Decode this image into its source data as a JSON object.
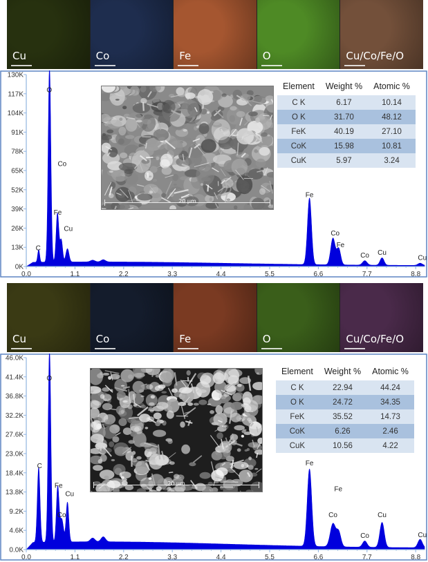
{
  "panels": [
    {
      "maps": [
        {
          "label": "Cu",
          "color": "#27310f"
        },
        {
          "label": "Co",
          "color": "#1e2d4e"
        },
        {
          "label": "Fe",
          "color": "#a55630"
        },
        {
          "label": "O",
          "color": "#4e8a25"
        },
        {
          "label": "Cu/Co/Fe/O",
          "color": "#73503a"
        }
      ],
      "sem_scale": "20 µm",
      "table": {
        "headers": [
          "Element",
          "Weight %",
          "Atomic %"
        ],
        "rows": [
          [
            "C K",
            "6.17",
            "10.14"
          ],
          [
            "O K",
            "31.70",
            "48.12"
          ],
          [
            "FeK",
            "40.19",
            "27.10"
          ],
          [
            "CoK",
            "15.98",
            "10.81"
          ],
          [
            "CuK",
            "5.97",
            "3.24"
          ]
        ]
      }
    },
    {
      "maps": [
        {
          "label": "Cu",
          "color": "#3a3a14"
        },
        {
          "label": "Co",
          "color": "#141c2c"
        },
        {
          "label": "Fe",
          "color": "#7a3a22"
        },
        {
          "label": "O",
          "color": "#3a5e1a"
        },
        {
          "label": "Cu/Co/Fe/O",
          "color": "#4a2a4a"
        }
      ],
      "sem_scale": "20 µm",
      "table": {
        "headers": [
          "Element",
          "Weight %",
          "Atomic %"
        ],
        "rows": [
          [
            "C K",
            "22.94",
            "44.24"
          ],
          [
            "O K",
            "24.72",
            "34.35"
          ],
          [
            "FeK",
            "35.52",
            "14.73"
          ],
          [
            "CoK",
            "6.26",
            "2.46"
          ],
          [
            "CuK",
            "10.56",
            "4.22"
          ]
        ]
      }
    }
  ],
  "colors": {
    "spectrum": "#0000dd",
    "axis": "#8fb3e0",
    "frame": "#5b83c2"
  },
  "chart_data": [
    {
      "type": "area",
      "title": "",
      "xlabel": "",
      "ylabel": "",
      "xlim": [
        0,
        9.0
      ],
      "ylim": [
        0,
        130000
      ],
      "x_ticks": [
        0.0,
        1.1,
        2.2,
        3.3,
        4.4,
        5.5,
        6.6,
        7.7,
        8.8
      ],
      "x_tick_labels": [
        "0.0",
        "1.1",
        "2.2",
        "3.3",
        "4.4",
        "5.5",
        "6.6",
        "7.7",
        "8.8"
      ],
      "y_ticks": [
        0,
        13000,
        26000,
        39000,
        52000,
        65000,
        78000,
        91000,
        104000,
        117000,
        130000
      ],
      "y_tick_labels": [
        "0K",
        "13K",
        "26K",
        "39K",
        "52K",
        "65K",
        "78K",
        "91K",
        "104K",
        "117K",
        "130K"
      ],
      "background": 2500,
      "peaks": [
        {
          "x": 0.28,
          "y": 8500,
          "w": 0.022
        },
        {
          "x": 0.525,
          "y": 132000,
          "w": 0.03
        },
        {
          "x": 0.705,
          "y": 33000,
          "w": 0.03
        },
        {
          "x": 0.79,
          "y": 15000,
          "w": 0.03
        },
        {
          "x": 0.93,
          "y": 9000,
          "w": 0.035
        },
        {
          "x": 1.5,
          "y": 1200,
          "w": 0.05
        },
        {
          "x": 1.74,
          "y": 1500,
          "w": 0.05
        },
        {
          "x": 6.4,
          "y": 45000,
          "w": 0.045
        },
        {
          "x": 6.93,
          "y": 18000,
          "w": 0.05
        },
        {
          "x": 7.06,
          "y": 11000,
          "w": 0.045
        },
        {
          "x": 7.65,
          "y": 3000,
          "w": 0.05
        },
        {
          "x": 8.04,
          "y": 5000,
          "w": 0.045
        },
        {
          "x": 8.9,
          "y": 1500,
          "w": 0.05
        }
      ],
      "annotations": [
        {
          "text": "O",
          "x": 0.52,
          "y": 118000
        },
        {
          "text": "Co",
          "x": 0.81,
          "y": 68000
        },
        {
          "text": "Fe",
          "x": 0.71,
          "y": 35000
        },
        {
          "text": "Cu",
          "x": 0.95,
          "y": 24000
        },
        {
          "text": "C",
          "x": 0.27,
          "y": 11000
        },
        {
          "text": "Fe",
          "x": 6.4,
          "y": 47000
        },
        {
          "text": "Co",
          "x": 6.98,
          "y": 21000
        },
        {
          "text": "Fe",
          "x": 7.1,
          "y": 13000
        },
        {
          "text": "Co",
          "x": 7.65,
          "y": 6000
        },
        {
          "text": "Cu",
          "x": 8.04,
          "y": 8000
        },
        {
          "text": "Cu",
          "x": 8.95,
          "y": 4500
        }
      ]
    },
    {
      "type": "area",
      "title": "",
      "xlabel": "",
      "ylabel": "",
      "xlim": [
        0,
        9.0
      ],
      "ylim": [
        0,
        46000
      ],
      "x_ticks": [
        0.0,
        1.1,
        2.2,
        3.3,
        4.4,
        5.5,
        6.6,
        7.7,
        8.8
      ],
      "x_tick_labels": [
        "0.0",
        "1.1",
        "2.2",
        "3.3",
        "4.4",
        "5.5",
        "6.6",
        "7.7",
        "8.8"
      ],
      "y_ticks": [
        0,
        4600,
        9200,
        13800,
        18400,
        23000,
        27600,
        32200,
        36800,
        41400,
        46000
      ],
      "y_tick_labels": [
        "0.0K",
        "4.6K",
        "9.2K",
        "13.8K",
        "18.4K",
        "23.0K",
        "27.6K",
        "32.2K",
        "36.8K",
        "41.4K",
        "46.0K"
      ],
      "background": 1500,
      "peaks": [
        {
          "x": 0.28,
          "y": 18000,
          "w": 0.03
        },
        {
          "x": 0.525,
          "y": 46000,
          "w": 0.03
        },
        {
          "x": 0.71,
          "y": 13000,
          "w": 0.03
        },
        {
          "x": 0.8,
          "y": 5500,
          "w": 0.04
        },
        {
          "x": 0.93,
          "y": 9500,
          "w": 0.03
        },
        {
          "x": 1.5,
          "y": 900,
          "w": 0.05
        },
        {
          "x": 1.74,
          "y": 1200,
          "w": 0.05
        },
        {
          "x": 6.4,
          "y": 18500,
          "w": 0.05
        },
        {
          "x": 6.93,
          "y": 5500,
          "w": 0.06
        },
        {
          "x": 7.06,
          "y": 3500,
          "w": 0.05
        },
        {
          "x": 7.65,
          "y": 1500,
          "w": 0.05
        },
        {
          "x": 8.04,
          "y": 6000,
          "w": 0.05
        },
        {
          "x": 8.9,
          "y": 2000,
          "w": 0.05
        }
      ],
      "annotations": [
        {
          "text": "O",
          "x": 0.52,
          "y": 40500
        },
        {
          "text": "C",
          "x": 0.3,
          "y": 19500
        },
        {
          "text": "Fe",
          "x": 0.73,
          "y": 14800
        },
        {
          "text": "Cu",
          "x": 0.98,
          "y": 12800
        },
        {
          "text": "Co",
          "x": 0.8,
          "y": 7800
        },
        {
          "text": "Fe",
          "x": 6.4,
          "y": 20200
        },
        {
          "text": "Fe",
          "x": 7.05,
          "y": 14000
        },
        {
          "text": "Co",
          "x": 6.93,
          "y": 7800
        },
        {
          "text": "Co",
          "x": 7.65,
          "y": 2800
        },
        {
          "text": "Cu",
          "x": 8.04,
          "y": 7800
        },
        {
          "text": "Cu",
          "x": 8.95,
          "y": 3000
        }
      ]
    }
  ]
}
